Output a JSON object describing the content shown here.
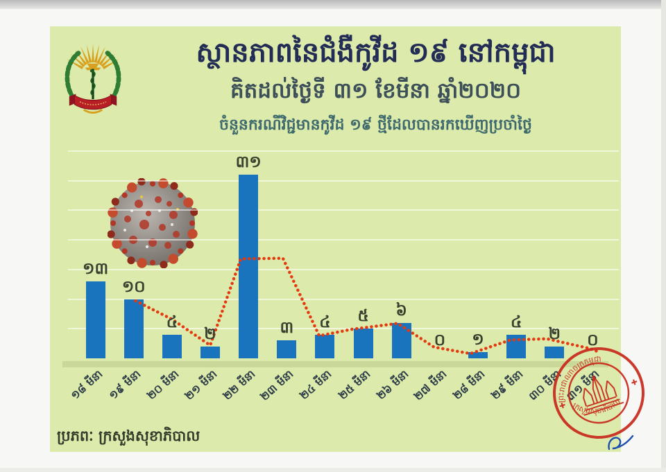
{
  "header": {
    "title": "ស្ថានភាពនៃជំងឺកូវីដ ១៩ នៅកម្ពុជា",
    "date_line": "គិតដល់ថ្ងៃទី ៣១ ខែមីនា ឆ្នាំ២០២០",
    "caption": "ចំនួនករណីវិជ្ជមានកូវីដ ១៩ ថ្មីដែលបានរកឃើញប្រចាំថ្ងៃ"
  },
  "footer": {
    "source": "ប្រភពៈ ក្រសួងសុខាភិបាល"
  },
  "logo": {
    "name": "ministry-of-health-cambodia-emblem"
  },
  "stamp": {
    "shape": "circular-red-seal",
    "text_top": "ព្រះរាជាណាចក្រកម្ពុជា",
    "text_bottom": "ក្រសួងសុខាភិបាល",
    "center_motif": "angkor-wat",
    "color": "#c8291b"
  },
  "annotations": {
    "signature_mark": "blue-pen-squiggle",
    "image": "coronavirus-illustration"
  },
  "chart_data": {
    "type": "bar",
    "title": "ចំនួនករណីវិជ្ជមានកូវីដ ១៩ ថ្មីដែលបានរកឃើញប្រចាំថ្ងៃ",
    "categories": [
      "១៨ មីនា",
      "១៩ មីនា",
      "២០ មីនា",
      "២១ មីនា",
      "២២ មីនា",
      "២៣ មីនា",
      "២៤ មីនា",
      "២៥ មីនា",
      "២៦ មីនា",
      "២៧ មីនា",
      "២៨ មីនា",
      "២៩ មីនា",
      "៣០ មីនា",
      "៣១ មីនា"
    ],
    "values": [
      13,
      10,
      4,
      2,
      31,
      3,
      4,
      5,
      6,
      0,
      1,
      4,
      2,
      0
    ],
    "value_labels": [
      "១៣",
      "១០",
      "៤",
      "២",
      "៣១",
      "៣",
      "៤",
      "៥",
      "៦",
      "០",
      "១",
      "៤",
      "២",
      "០"
    ],
    "xlabel": "",
    "ylabel": "",
    "ylim": [
      0,
      35
    ],
    "grid_step": 5,
    "grid": true,
    "legend": false,
    "bar_color": "#1a73bd",
    "trend_color": "#e33a10",
    "trend_points": [
      [
        1.05,
        9.7
      ],
      [
        2.0,
        6.6
      ],
      [
        3.0,
        2.2
      ],
      [
        3.8,
        16.8
      ],
      [
        4.9,
        16.9
      ],
      [
        5.85,
        3.8
      ],
      [
        6.7,
        4.9
      ],
      [
        7.9,
        5.9
      ],
      [
        8.85,
        1.9
      ],
      [
        9.8,
        0.8
      ],
      [
        10.85,
        3.1
      ],
      [
        11.8,
        3.3
      ],
      [
        12.9,
        1.7
      ],
      [
        13.15,
        1.1
      ]
    ]
  }
}
